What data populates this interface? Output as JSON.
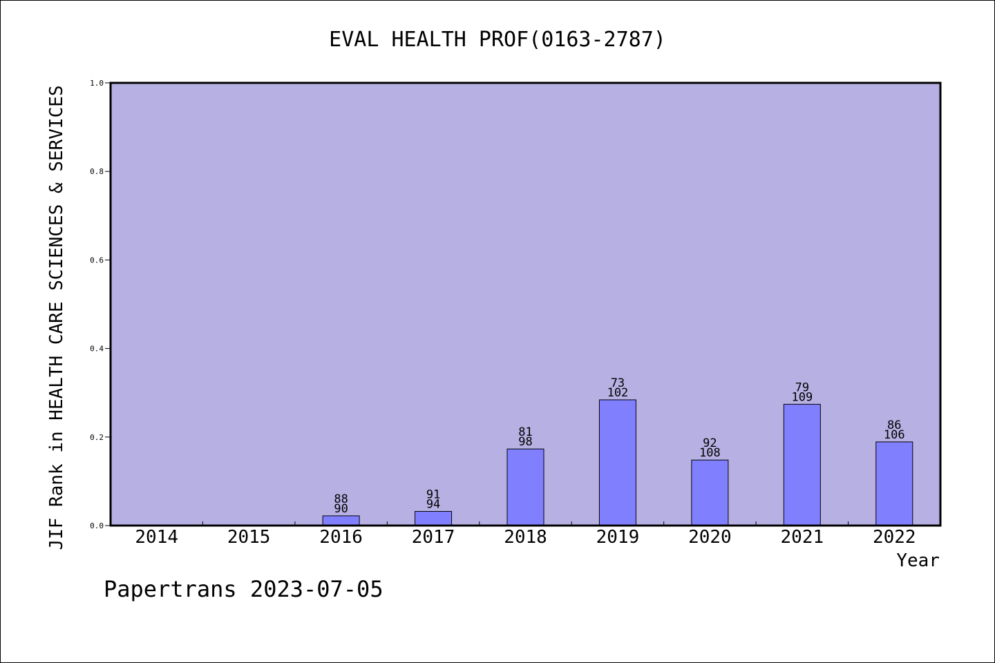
{
  "chart_data": {
    "type": "bar",
    "title": "EVAL HEALTH PROF(0163-2787)",
    "xlabel": "Year",
    "ylabel": "JIF Rank in HEALTH CARE SCIENCES & SERVICES",
    "ylim": [
      0,
      1.0
    ],
    "yticks": [
      "0.0",
      "0.2",
      "0.4",
      "0.6",
      "0.8",
      "1.0"
    ],
    "categories": [
      "2014",
      "2015",
      "2016",
      "2017",
      "2018",
      "2019",
      "2020",
      "2021",
      "2022"
    ],
    "values": [
      null,
      null,
      0.022,
      0.032,
      0.173,
      0.284,
      0.148,
      0.274,
      0.189
    ],
    "rank_labels": [
      null,
      null,
      "88",
      "91",
      "81",
      "73",
      "92",
      "79",
      "86"
    ],
    "total_labels": [
      null,
      null,
      "90",
      "94",
      "98",
      "102",
      "108",
      "109",
      "106"
    ],
    "grid": false,
    "legend": "none"
  },
  "footer": "Papertrans 2023-07-05",
  "colors": {
    "plot_background": "#b7b0e3",
    "bar_fill": "#8080ff",
    "bar_stroke": "#000000",
    "axis": "#000000"
  }
}
